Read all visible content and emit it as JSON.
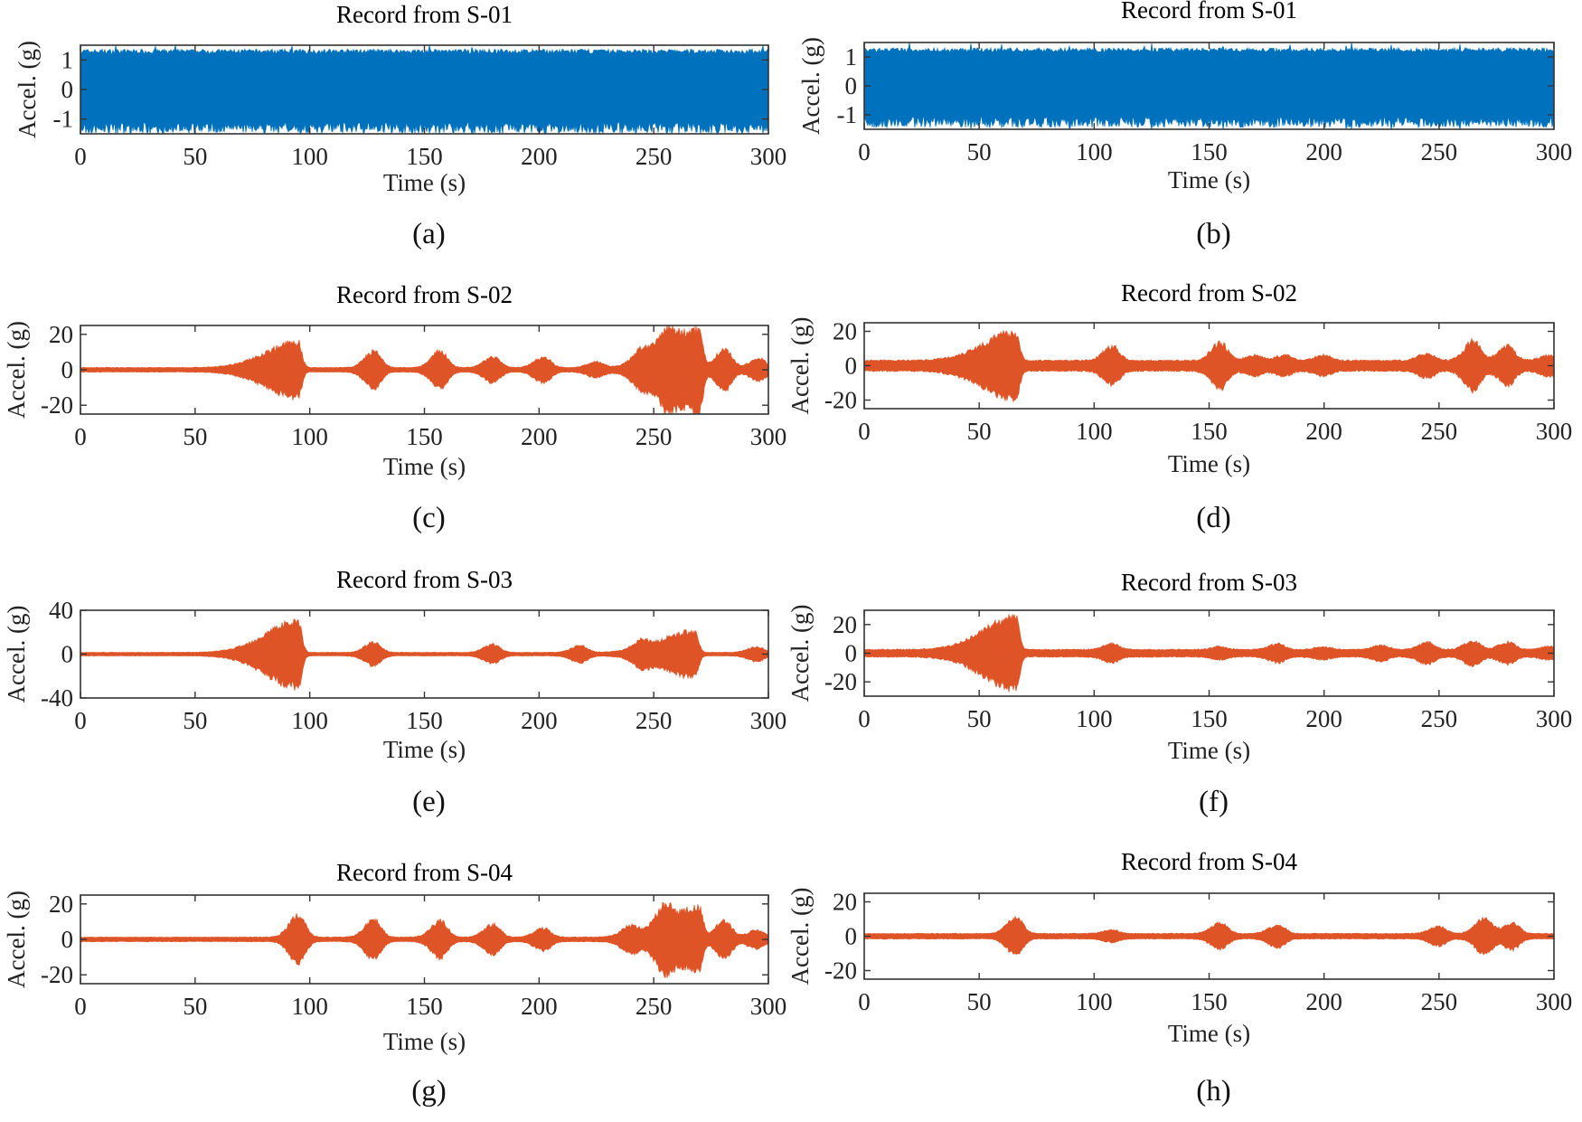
{
  "chart_data": [
    {
      "id": "a",
      "type": "line",
      "title": "Record from S-01",
      "xlabel": "Time (s)",
      "ylabel": "Accel. (g)",
      "panel_label": "(a)",
      "xlim": [
        0,
        300
      ],
      "xticks": [
        0,
        50,
        100,
        150,
        200,
        250,
        300
      ],
      "ylim": [
        -1.5,
        1.5
      ],
      "yticks": [
        1,
        0,
        -1
      ],
      "color": "#0072BD",
      "baseline": 1.3,
      "bursts": []
    },
    {
      "id": "b",
      "type": "line",
      "title": "Record from S-01",
      "xlabel": "Time (s)",
      "ylabel": "Accel. (g)",
      "panel_label": "(b)",
      "xlim": [
        0,
        300
      ],
      "xticks": [
        0,
        50,
        100,
        150,
        200,
        250,
        300
      ],
      "ylim": [
        -1.5,
        1.5
      ],
      "yticks": [
        1,
        0,
        -1
      ],
      "color": "#0072BD",
      "baseline": 1.25,
      "bursts": []
    },
    {
      "id": "c",
      "type": "line",
      "title": "Record from S-02",
      "xlabel": "Time (s)",
      "ylabel": "Accel. (g)",
      "panel_label": "(c)",
      "xlim": [
        0,
        300
      ],
      "xticks": [
        0,
        50,
        100,
        150,
        200,
        250,
        300
      ],
      "ylim": [
        -25,
        25
      ],
      "yticks": [
        20,
        0,
        -20
      ],
      "color": "#DF5426",
      "baseline": 1.2,
      "bursts": [
        [
          95,
          14
        ],
        [
          128,
          9
        ],
        [
          157,
          9
        ],
        [
          180,
          6
        ],
        [
          202,
          6
        ],
        [
          225,
          3
        ],
        [
          245,
          7
        ],
        [
          256,
          10
        ],
        [
          270,
          21
        ],
        [
          281,
          10
        ],
        [
          296,
          5
        ]
      ]
    },
    {
      "id": "d",
      "type": "line",
      "title": "Record from S-02",
      "xlabel": "Time (s)",
      "ylabel": "Accel. (g)",
      "panel_label": "(d)",
      "xlim": [
        0,
        300
      ],
      "xticks": [
        0,
        50,
        100,
        150,
        200,
        250,
        300
      ],
      "ylim": [
        -25,
        25
      ],
      "yticks": [
        20,
        0,
        -20
      ],
      "color": "#DF5426",
      "baseline": 3,
      "bursts": [
        [
          66,
          16
        ],
        [
          108,
          8
        ],
        [
          155,
          10
        ],
        [
          170,
          3
        ],
        [
          183,
          3
        ],
        [
          200,
          3
        ],
        [
          245,
          4
        ],
        [
          265,
          11
        ],
        [
          280,
          8
        ],
        [
          298,
          3
        ]
      ]
    },
    {
      "id": "e",
      "type": "line",
      "title": "Record from S-03",
      "xlabel": "Time (s)",
      "ylabel": "Accel. (g)",
      "panel_label": "(e)",
      "xlim": [
        0,
        300
      ],
      "xticks": [
        0,
        50,
        100,
        150,
        200,
        250,
        300
      ],
      "ylim": [
        -40,
        40
      ],
      "yticks": [
        40,
        0,
        -40
      ],
      "color": "#DF5426",
      "baseline": 1.5,
      "bursts": [
        [
          95,
          28
        ],
        [
          128,
          9
        ],
        [
          180,
          7
        ],
        [
          218,
          6
        ],
        [
          245,
          7
        ],
        [
          268,
          19
        ],
        [
          295,
          5
        ]
      ]
    },
    {
      "id": "f",
      "type": "line",
      "title": "Record from S-03",
      "xlabel": "Time (s)",
      "ylabel": "Accel. (g)",
      "panel_label": "(f)",
      "xlim": [
        0,
        300
      ],
      "xticks": [
        0,
        50,
        100,
        150,
        200,
        250,
        300
      ],
      "ylim": [
        -30,
        30
      ],
      "yticks": [
        20,
        0,
        -20
      ],
      "color": "#DF5426",
      "baseline": 2.5,
      "bursts": [
        [
          66,
          22
        ],
        [
          108,
          4
        ],
        [
          155,
          2
        ],
        [
          180,
          4
        ],
        [
          200,
          2
        ],
        [
          225,
          3
        ],
        [
          245,
          5
        ],
        [
          265,
          6
        ],
        [
          280,
          5
        ],
        [
          298,
          2
        ]
      ]
    },
    {
      "id": "g",
      "type": "line",
      "title": "Record from S-04",
      "xlabel": "Time (s)",
      "ylabel": "Accel. (g)",
      "panel_label": "(g)",
      "xlim": [
        0,
        300
      ],
      "xticks": [
        0,
        50,
        100,
        150,
        200,
        250,
        300
      ],
      "ylim": [
        -25,
        25
      ],
      "yticks": [
        20,
        0,
        -20
      ],
      "color": "#DF5426",
      "baseline": 1.2,
      "bursts": [
        [
          95,
          12
        ],
        [
          128,
          10
        ],
        [
          157,
          9
        ],
        [
          180,
          7
        ],
        [
          202,
          5
        ],
        [
          240,
          5
        ],
        [
          255,
          9
        ],
        [
          270,
          16
        ],
        [
          281,
          9
        ],
        [
          295,
          4
        ]
      ]
    },
    {
      "id": "h",
      "type": "line",
      "title": "Record from S-04",
      "xlabel": "Time (s)",
      "ylabel": "Accel. (g)",
      "panel_label": "(h)",
      "xlim": [
        0,
        300
      ],
      "xticks": [
        0,
        50,
        100,
        150,
        200,
        250,
        300
      ],
      "ylim": [
        -25,
        25
      ],
      "yticks": [
        20,
        0,
        -20
      ],
      "color": "#DF5426",
      "baseline": 1.5,
      "bursts": [
        [
          66,
          9
        ],
        [
          108,
          2
        ],
        [
          155,
          6
        ],
        [
          180,
          5
        ],
        [
          250,
          4
        ],
        [
          270,
          9
        ],
        [
          282,
          6
        ]
      ]
    }
  ]
}
